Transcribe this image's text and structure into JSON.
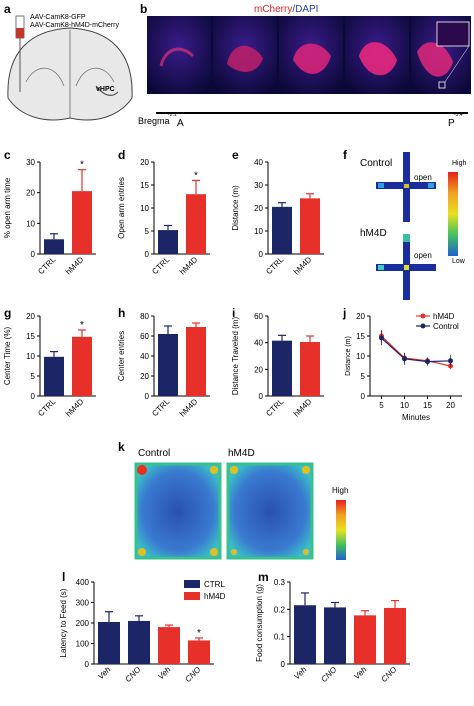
{
  "panel_letters": [
    "a",
    "b",
    "c",
    "d",
    "e",
    "f",
    "g",
    "h",
    "i",
    "j",
    "k",
    "l",
    "m"
  ],
  "panel_a": {
    "virus_1": "AAV-CamK8-GFP",
    "virus_2": "AAV-CamK8-hM4D-mCherry",
    "region": "vHPC"
  },
  "panel_b": {
    "title_red": "mCherry",
    "title_sep": "/",
    "title_blue": "DAPI",
    "bregma_label": "Bregma",
    "start_value": "-2.1",
    "start_letter": "A",
    "end_value": "-3.4",
    "end_letter": "P"
  },
  "panel_f": {
    "control_label": "Control",
    "hm4d_label": "hM4D",
    "open_label": "open",
    "scale_high": "High",
    "scale_low": "Low"
  },
  "panel_k": {
    "control_label": "Control",
    "hm4d_label": "hM4D",
    "scale_high": "High"
  },
  "colors": {
    "ctrl": "#1c2566",
    "hm4d": "#e8302a",
    "mcherry_text": "#e2202b",
    "dapi_text": "#2a3ca8"
  },
  "chart_data": [
    {
      "id": "c",
      "type": "bar",
      "categories": [
        "CTRL",
        "hM4D"
      ],
      "values": [
        4.8,
        20.5
      ],
      "errors": [
        1.8,
        7
      ],
      "ylabel": "% open arm time",
      "ylim": [
        0,
        30
      ],
      "yticks": [
        0,
        10,
        20,
        30
      ],
      "sig": [
        false,
        true
      ]
    },
    {
      "id": "d",
      "type": "bar",
      "categories": [
        "CTRL",
        "hM4D"
      ],
      "values": [
        5.2,
        13
      ],
      "errors": [
        1,
        3
      ],
      "ylabel": "Open arm entries",
      "ylim": [
        0,
        20
      ],
      "yticks": [
        0,
        5,
        10,
        15,
        20
      ],
      "sig": [
        false,
        true
      ]
    },
    {
      "id": "e",
      "type": "bar",
      "categories": [
        "CTRL",
        "hM4D"
      ],
      "values": [
        20.5,
        24.2
      ],
      "errors": [
        1.8,
        2
      ],
      "ylabel": "Distance (m)",
      "ylim": [
        0,
        40
      ],
      "yticks": [
        0,
        10,
        20,
        30,
        40
      ],
      "sig": [
        false,
        false
      ]
    },
    {
      "id": "g",
      "type": "bar",
      "categories": [
        "CTRL",
        "hM4D"
      ],
      "values": [
        9.8,
        14.8
      ],
      "errors": [
        1.3,
        1.7
      ],
      "ylabel": "Center Time (%)",
      "ylim": [
        0,
        20
      ],
      "yticks": [
        0,
        5,
        10,
        15,
        20
      ],
      "sig": [
        false,
        true
      ]
    },
    {
      "id": "h",
      "type": "bar",
      "categories": [
        "CTRL",
        "hM4D"
      ],
      "values": [
        62,
        69
      ],
      "errors": [
        8,
        4
      ],
      "ylabel": "Center entries",
      "ylim": [
        0,
        80
      ],
      "yticks": [
        0,
        20,
        40,
        60,
        80
      ],
      "sig": [
        false,
        false
      ]
    },
    {
      "id": "i",
      "type": "bar",
      "categories": [
        "CTRL",
        "hM4D"
      ],
      "values": [
        41.5,
        40.5
      ],
      "errors": [
        4,
        4.5
      ],
      "ylabel": "Distance Traveled (m)",
      "ylim": [
        0,
        60
      ],
      "yticks": [
        0,
        20,
        40,
        60
      ],
      "sig": [
        false,
        false
      ]
    },
    {
      "id": "j",
      "type": "line",
      "x": [
        5,
        10,
        15,
        20
      ],
      "xticks": [
        5,
        10,
        15,
        20
      ],
      "xlabel": "Minutes",
      "ylabel": "Distance (m)",
      "ylim": [
        0,
        20
      ],
      "yticks": [
        0,
        5,
        10,
        15,
        20
      ],
      "legend": "top-right",
      "series": [
        {
          "name": "hM4D",
          "values": [
            15,
            9.5,
            8.8,
            7.5
          ],
          "errors": [
            1.5,
            1.2,
            0.8,
            0.8
          ]
        },
        {
          "name": "Control",
          "values": [
            14.5,
            9.3,
            8.6,
            8.8
          ],
          "errors": [
            1.8,
            1.5,
            1,
            1.5
          ]
        }
      ]
    },
    {
      "id": "l",
      "type": "bar",
      "categories": [
        "Veh",
        "CNO",
        "Veh",
        "CNO"
      ],
      "values": [
        205,
        210,
        180,
        115
      ],
      "errors": [
        50,
        25,
        10,
        12
      ],
      "ylabel": "Latency to Feed (s)",
      "ylim": [
        0,
        400
      ],
      "yticks": [
        0,
        100,
        200,
        300,
        400
      ],
      "sig": [
        false,
        false,
        false,
        true
      ],
      "legend": [
        {
          "name": "CTRL"
        },
        {
          "name": "hM4D"
        }
      ],
      "legend_position": "top-right"
    },
    {
      "id": "m",
      "type": "bar",
      "categories": [
        "Veh",
        "CNO",
        "Veh",
        "CNO"
      ],
      "values": [
        0.215,
        0.207,
        0.178,
        0.205
      ],
      "errors": [
        0.045,
        0.018,
        0.017,
        0.027
      ],
      "ylabel": "Food consumption (g)",
      "ylim": [
        0,
        0.3
      ],
      "yticks": [
        0,
        0.1,
        0.2,
        0.3
      ],
      "sig": [
        false,
        false,
        false,
        false
      ]
    }
  ]
}
